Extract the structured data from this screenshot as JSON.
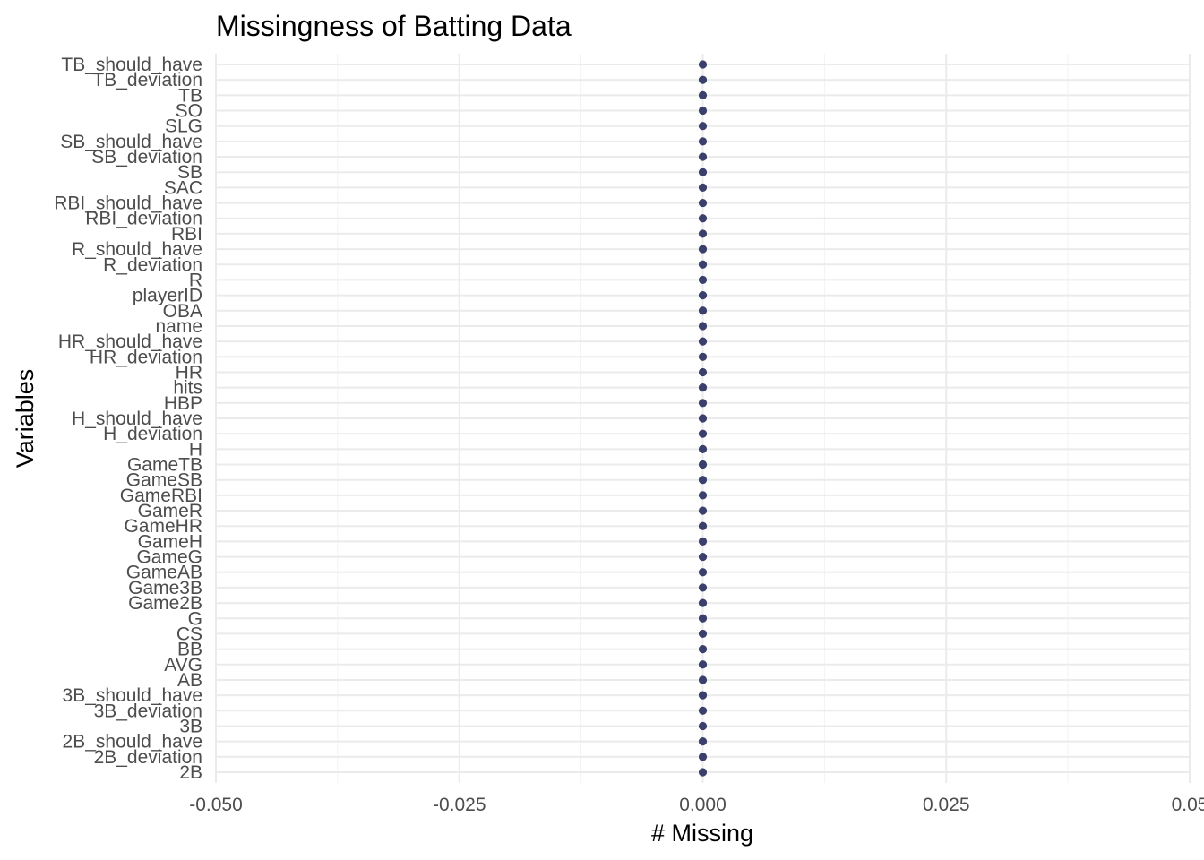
{
  "chart_data": {
    "type": "scatter",
    "title": "Missingness of Batting Data",
    "xlabel": "# Missing",
    "ylabel": "Variables",
    "xlim": [
      -0.05,
      0.05
    ],
    "x_ticks": [
      "-0.050",
      "-0.025",
      "0.000",
      "0.025",
      "0.05"
    ],
    "x_tick_values": [
      -0.05,
      -0.025,
      0.0,
      0.025,
      0.05
    ],
    "grid": true,
    "point_color": "#3b3f6b",
    "categories": [
      "TB_should_have",
      "TB_deviation",
      "TB",
      "SO",
      "SLG",
      "SB_should_have",
      "SB_deviation",
      "SB",
      "SAC",
      "RBI_should_have",
      "RBI_deviation",
      "RBI",
      "R_should_have",
      "R_deviation",
      "R",
      "playerID",
      "OBA",
      "name",
      "HR_should_have",
      "HR_deviation",
      "HR",
      "hits",
      "HBP",
      "H_should_have",
      "H_deviation",
      "H",
      "GameTB",
      "GameSB",
      "GameRBI",
      "GameR",
      "GameHR",
      "GameH",
      "GameG",
      "GameAB",
      "Game3B",
      "Game2B",
      "G",
      "CS",
      "BB",
      "AVG",
      "AB",
      "3B_should_have",
      "3B_deviation",
      "3B",
      "2B_should_have",
      "2B_deviation",
      "2B"
    ],
    "values": [
      0,
      0,
      0,
      0,
      0,
      0,
      0,
      0,
      0,
      0,
      0,
      0,
      0,
      0,
      0,
      0,
      0,
      0,
      0,
      0,
      0,
      0,
      0,
      0,
      0,
      0,
      0,
      0,
      0,
      0,
      0,
      0,
      0,
      0,
      0,
      0,
      0,
      0,
      0,
      0,
      0,
      0,
      0,
      0,
      0,
      0,
      0
    ]
  }
}
